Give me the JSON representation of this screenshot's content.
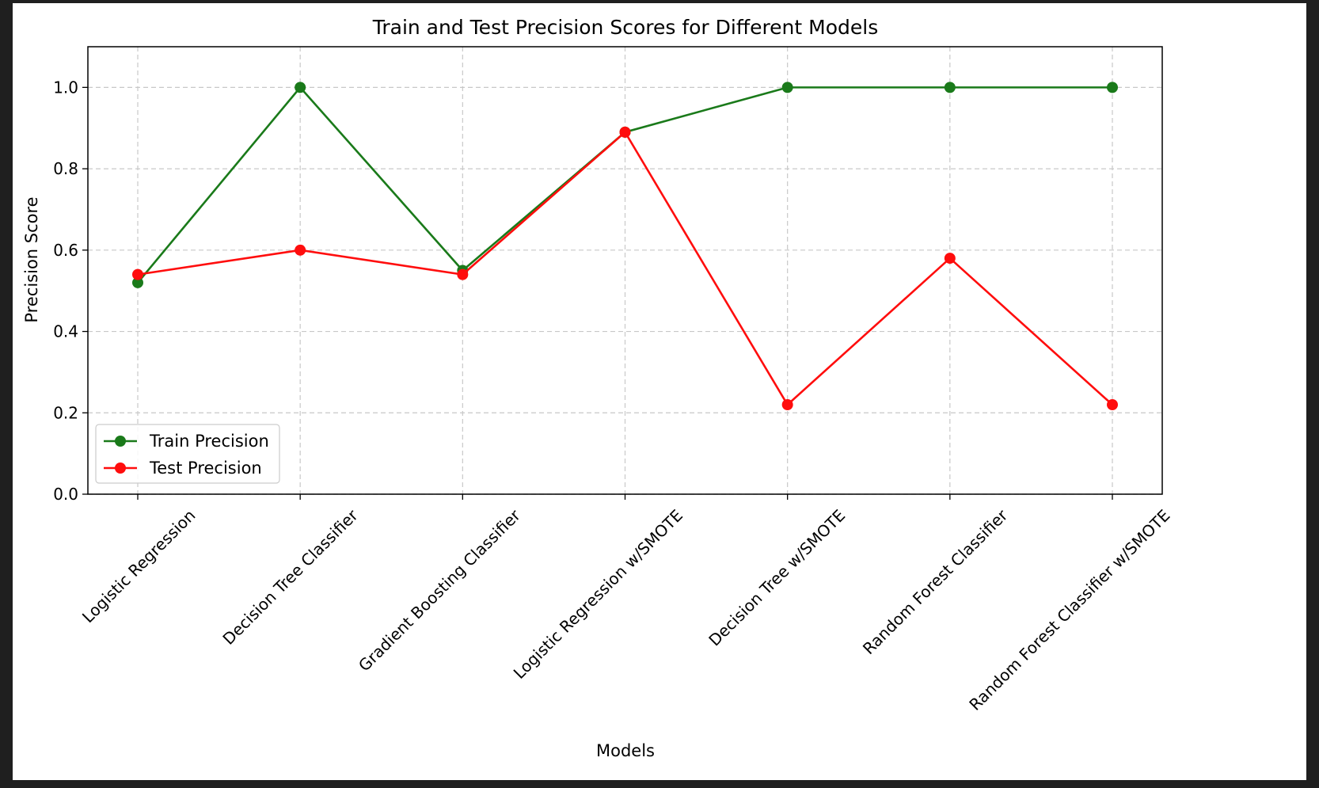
{
  "chart_data": {
    "type": "line",
    "title": "Train and Test Precision Scores for Different Models",
    "xlabel": "Models",
    "ylabel": "Precision Score",
    "categories": [
      "Logistic Regression",
      "Decision Tree Classifier",
      "Gradient Boosting Classifier",
      "Logistic Regression w/SMOTE",
      "Decision Tree w/SMOTE",
      "Random Forest Classifier",
      "Random Forest Classifier w/SMOTE"
    ],
    "series": [
      {
        "name": "Train Precision",
        "color": "#1a7a1a",
        "values": [
          0.52,
          1.0,
          0.55,
          0.89,
          1.0,
          1.0,
          1.0
        ]
      },
      {
        "name": "Test Precision",
        "color": "#ff0d0d",
        "values": [
          0.54,
          0.6,
          0.54,
          0.89,
          0.22,
          0.58,
          0.22
        ]
      }
    ],
    "ylim": [
      0.0,
      1.1
    ],
    "yticks": [
      "0.0",
      "0.2",
      "0.4",
      "0.6",
      "0.8",
      "1.0"
    ],
    "grid": true,
    "legend_position": "lower-left"
  }
}
